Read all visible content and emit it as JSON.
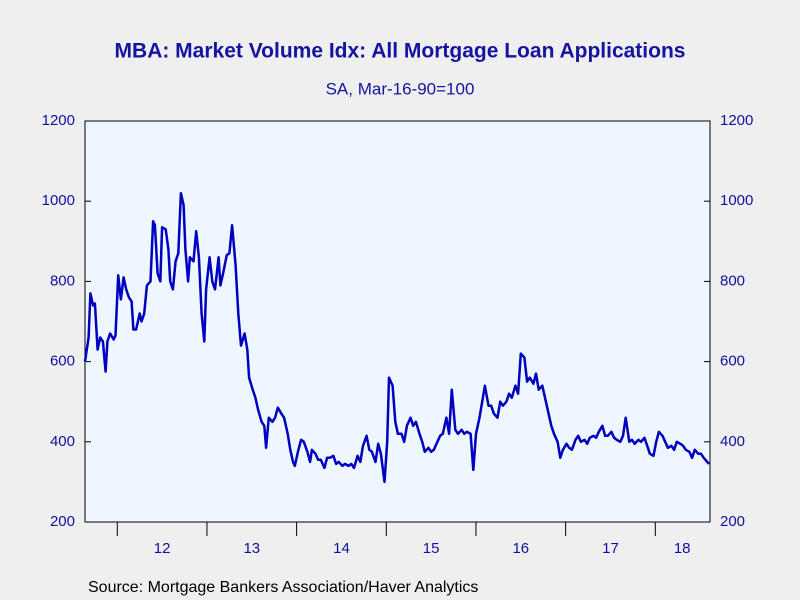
{
  "chart_data": {
    "type": "line",
    "title": "MBA: Market Volume Idx: All Mortgage Loan Applications",
    "subtitle": "SA, Mar-16-90=100",
    "source": "Source:  Mortgage Bankers Association/Haver Analytics",
    "color": "#0000c0",
    "xlim": [
      11.64,
      18.61
    ],
    "ylim": [
      200,
      1200
    ],
    "yticks": [
      200,
      400,
      600,
      800,
      1000,
      1200
    ],
    "xticks": [
      {
        "value": 12.5,
        "label": "12"
      },
      {
        "value": 13.5,
        "label": "13"
      },
      {
        "value": 14.5,
        "label": "14"
      },
      {
        "value": 15.5,
        "label": "15"
      },
      {
        "value": 16.5,
        "label": "16"
      },
      {
        "value": 17.5,
        "label": "17"
      },
      {
        "value": 18.3,
        "label": "18"
      }
    ],
    "xminor_ticks": [
      12,
      13,
      14,
      15,
      16,
      17,
      18
    ],
    "x": [
      11.64,
      11.68,
      11.7,
      11.73,
      11.75,
      11.78,
      11.81,
      11.84,
      11.87,
      11.89,
      11.92,
      11.96,
      11.98,
      12.01,
      12.04,
      12.07,
      12.1,
      12.13,
      12.16,
      12.18,
      12.21,
      12.25,
      12.27,
      12.3,
      12.33,
      12.37,
      12.4,
      12.42,
      12.45,
      12.48,
      12.5,
      12.54,
      12.57,
      12.59,
      12.62,
      12.65,
      12.68,
      12.71,
      12.74,
      12.76,
      12.79,
      12.81,
      12.85,
      12.88,
      12.91,
      12.94,
      12.97,
      12.99,
      13.03,
      13.06,
      13.09,
      13.13,
      13.15,
      13.18,
      13.22,
      13.25,
      13.28,
      13.32,
      13.35,
      13.38,
      13.42,
      13.45,
      13.47,
      13.51,
      13.54,
      13.57,
      13.61,
      13.64,
      13.66,
      13.69,
      13.73,
      13.76,
      13.79,
      13.83,
      13.86,
      13.9,
      13.93,
      13.96,
      13.98,
      14.02,
      14.05,
      14.08,
      14.12,
      14.15,
      14.17,
      14.21,
      14.24,
      14.27,
      14.31,
      14.34,
      14.37,
      14.41,
      14.44,
      14.47,
      14.51,
      14.54,
      14.58,
      14.61,
      14.64,
      14.68,
      14.71,
      14.74,
      14.78,
      14.81,
      14.84,
      14.88,
      14.91,
      14.94,
      14.98,
      15.01,
      15.03,
      15.07,
      15.1,
      15.13,
      15.17,
      15.2,
      15.23,
      15.27,
      15.3,
      15.33,
      15.37,
      15.4,
      15.43,
      15.47,
      15.5,
      15.53,
      15.57,
      15.6,
      15.63,
      15.67,
      15.7,
      15.73,
      15.77,
      15.8,
      15.84,
      15.87,
      15.9,
      15.94,
      15.97,
      16.0,
      16.04,
      16.07,
      16.1,
      16.14,
      16.17,
      16.2,
      16.24,
      16.27,
      16.3,
      16.34,
      16.37,
      16.4,
      16.44,
      16.47,
      16.5,
      16.54,
      16.57,
      16.6,
      16.64,
      16.67,
      16.7,
      16.74,
      16.77,
      16.8,
      16.84,
      16.87,
      16.91,
      16.94,
      16.97,
      17.01,
      17.04,
      17.07,
      17.11,
      17.14,
      17.17,
      17.21,
      17.24,
      17.27,
      17.31,
      17.34,
      17.37,
      17.41,
      17.44,
      17.47,
      17.51,
      17.54,
      17.57,
      17.61,
      17.64,
      17.67,
      17.71,
      17.74,
      17.77,
      17.81,
      17.84,
      17.88,
      17.91,
      17.94,
      17.98,
      18.01,
      18.04,
      18.08,
      18.11,
      18.14,
      18.18,
      18.21,
      18.24,
      18.28,
      18.31,
      18.34,
      18.38,
      18.41,
      18.44,
      18.48,
      18.51,
      18.54,
      18.58,
      18.6
    ],
    "values": [
      600,
      660,
      770,
      740,
      745,
      630,
      660,
      650,
      575,
      650,
      670,
      655,
      665,
      815,
      755,
      810,
      780,
      760,
      750,
      680,
      680,
      720,
      700,
      720,
      790,
      800,
      950,
      940,
      820,
      800,
      935,
      930,
      880,
      800,
      780,
      850,
      870,
      1020,
      990,
      880,
      800,
      860,
      850,
      925,
      860,
      720,
      650,
      780,
      860,
      800,
      780,
      860,
      790,
      820,
      865,
      870,
      940,
      840,
      720,
      640,
      670,
      630,
      560,
      530,
      510,
      480,
      450,
      440,
      385,
      460,
      450,
      460,
      485,
      470,
      460,
      420,
      380,
      350,
      340,
      380,
      405,
      400,
      375,
      350,
      380,
      370,
      355,
      355,
      335,
      360,
      360,
      365,
      345,
      350,
      340,
      345,
      340,
      345,
      335,
      365,
      350,
      390,
      415,
      380,
      375,
      350,
      395,
      370,
      300,
      400,
      560,
      540,
      450,
      420,
      420,
      400,
      440,
      460,
      440,
      450,
      420,
      400,
      375,
      385,
      375,
      380,
      400,
      415,
      420,
      460,
      420,
      530,
      430,
      420,
      430,
      420,
      425,
      420,
      330,
      420,
      460,
      500,
      540,
      490,
      490,
      470,
      460,
      500,
      490,
      500,
      520,
      510,
      540,
      520,
      620,
      610,
      550,
      560,
      545,
      570,
      530,
      540,
      510,
      480,
      440,
      420,
      400,
      360,
      380,
      395,
      385,
      380,
      405,
      415,
      400,
      405,
      395,
      410,
      415,
      410,
      425,
      440,
      415,
      415,
      425,
      410,
      405,
      400,
      415,
      460,
      400,
      405,
      395,
      405,
      400,
      410,
      390,
      370,
      365,
      400,
      425,
      415,
      400,
      385,
      390,
      380,
      400,
      395,
      390,
      380,
      375,
      360,
      380,
      370,
      370,
      360,
      350,
      345
    ]
  }
}
